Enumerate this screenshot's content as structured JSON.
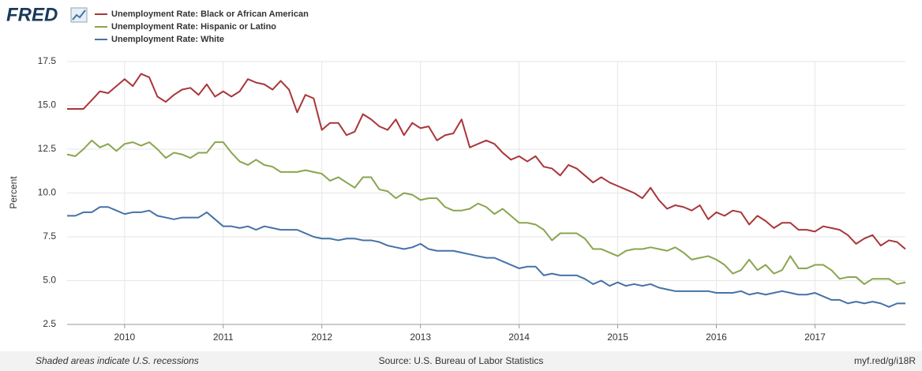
{
  "header": {
    "logo": "FRED"
  },
  "footer": {
    "note": "Shaded areas indicate U.S. recessions",
    "source": "Source: U.S. Bureau of Labor Statistics",
    "link": "myf.red/g/i18R"
  },
  "chart_data": {
    "type": "line",
    "ylabel": "Percent",
    "grid": true,
    "xlim": [
      2009.417,
      2017.917
    ],
    "xticks": [
      2010,
      2011,
      2012,
      2013,
      2014,
      2015,
      2016,
      2017
    ],
    "ylim": [
      2.5,
      17.5
    ],
    "yticks": [
      2.5,
      {
        "value": 5,
        "label": "5.0"
      },
      7.5,
      {
        "value": 10,
        "label": "10.0"
      },
      12.5,
      {
        "value": 15,
        "label": "15.0"
      },
      17.5
    ],
    "x": [
      2009.417,
      2009.5,
      2009.583,
      2009.667,
      2009.75,
      2009.833,
      2009.917,
      2010,
      2010.083,
      2010.167,
      2010.25,
      2010.333,
      2010.417,
      2010.5,
      2010.583,
      2010.667,
      2010.75,
      2010.833,
      2010.917,
      2011,
      2011.083,
      2011.167,
      2011.25,
      2011.333,
      2011.417,
      2011.5,
      2011.583,
      2011.667,
      2011.75,
      2011.833,
      2011.917,
      2012,
      2012.083,
      2012.167,
      2012.25,
      2012.333,
      2012.417,
      2012.5,
      2012.583,
      2012.667,
      2012.75,
      2012.833,
      2012.917,
      2013,
      2013.083,
      2013.167,
      2013.25,
      2013.333,
      2013.417,
      2013.5,
      2013.583,
      2013.667,
      2013.75,
      2013.833,
      2013.917,
      2014,
      2014.083,
      2014.167,
      2014.25,
      2014.333,
      2014.417,
      2014.5,
      2014.583,
      2014.667,
      2014.75,
      2014.833,
      2014.917,
      2015,
      2015.083,
      2015.167,
      2015.25,
      2015.333,
      2015.417,
      2015.5,
      2015.583,
      2015.667,
      2015.75,
      2015.833,
      2015.917,
      2016,
      2016.083,
      2016.167,
      2016.25,
      2016.333,
      2016.417,
      2016.5,
      2016.583,
      2016.667,
      2016.75,
      2016.833,
      2016.917,
      2017,
      2017.083,
      2017.167,
      2017.25,
      2017.333,
      2017.417,
      2017.5,
      2017.583,
      2017.667,
      2017.75,
      2017.833,
      2017.917
    ],
    "series": [
      {
        "name": "Unemployment Rate: Black or African American",
        "color": "#a9363a",
        "values": [
          14.8,
          14.8,
          14.8,
          15.3,
          15.8,
          15.7,
          16.1,
          16.5,
          16.1,
          16.8,
          16.6,
          15.5,
          15.2,
          15.6,
          15.9,
          16.0,
          15.6,
          16.2,
          15.5,
          15.8,
          15.5,
          15.8,
          16.5,
          16.3,
          16.2,
          15.9,
          16.4,
          15.9,
          14.6,
          15.6,
          15.4,
          13.6,
          14.0,
          14.0,
          13.3,
          13.5,
          14.5,
          14.2,
          13.8,
          13.6,
          14.2,
          13.3,
          14.0,
          13.7,
          13.8,
          13.0,
          13.3,
          13.4,
          14.2,
          12.6,
          12.8,
          13.0,
          12.8,
          12.3,
          11.9,
          12.1,
          11.8,
          12.1,
          11.5,
          11.4,
          11.0,
          11.6,
          11.4,
          11.0,
          10.6,
          10.9,
          10.6,
          10.4,
          10.2,
          10.0,
          9.7,
          10.3,
          9.6,
          9.1,
          9.3,
          9.2,
          9.0,
          9.3,
          8.5,
          8.9,
          8.7,
          9.0,
          8.9,
          8.2,
          8.7,
          8.4,
          8.0,
          8.3,
          8.3,
          7.9,
          7.9,
          7.8,
          8.1,
          8.0,
          7.9,
          7.6,
          7.1,
          7.4,
          7.6,
          7.0,
          7.3,
          7.2,
          6.8
        ]
      },
      {
        "name": "Unemployment Rate: Hispanic or Latino",
        "color": "#89a54e",
        "values": [
          12.2,
          12.1,
          12.5,
          13.0,
          12.6,
          12.8,
          12.4,
          12.8,
          12.9,
          12.7,
          12.9,
          12.5,
          12.0,
          12.3,
          12.2,
          12.0,
          12.3,
          12.3,
          12.9,
          12.9,
          12.3,
          11.8,
          11.6,
          11.9,
          11.6,
          11.5,
          11.2,
          11.2,
          11.2,
          11.3,
          11.2,
          11.1,
          10.7,
          10.9,
          10.6,
          10.3,
          10.9,
          10.9,
          10.2,
          10.1,
          9.7,
          10.0,
          9.9,
          9.6,
          9.7,
          9.7,
          9.2,
          9.0,
          9.0,
          9.1,
          9.4,
          9.2,
          8.8,
          9.1,
          8.7,
          8.3,
          8.3,
          8.2,
          7.9,
          7.3,
          7.7,
          7.7,
          7.7,
          7.4,
          6.8,
          6.8,
          6.6,
          6.4,
          6.7,
          6.8,
          6.8,
          6.9,
          6.8,
          6.7,
          6.9,
          6.6,
          6.2,
          6.3,
          6.4,
          6.2,
          5.9,
          5.4,
          5.6,
          6.2,
          5.6,
          5.9,
          5.4,
          5.6,
          6.4,
          5.7,
          5.7,
          5.9,
          5.9,
          5.6,
          5.1,
          5.2,
          5.2,
          4.8,
          5.1,
          5.1,
          5.1,
          4.8,
          4.9
        ]
      },
      {
        "name": "Unemployment Rate: White",
        "color": "#4572a7",
        "values": [
          8.7,
          8.7,
          8.9,
          8.9,
          9.2,
          9.2,
          9.0,
          8.8,
          8.9,
          8.9,
          9.0,
          8.7,
          8.6,
          8.5,
          8.6,
          8.6,
          8.6,
          8.9,
          8.5,
          8.1,
          8.1,
          8.0,
          8.1,
          7.9,
          8.1,
          8.0,
          7.9,
          7.9,
          7.9,
          7.7,
          7.5,
          7.4,
          7.4,
          7.3,
          7.4,
          7.4,
          7.3,
          7.3,
          7.2,
          7.0,
          6.9,
          6.8,
          6.9,
          7.1,
          6.8,
          6.7,
          6.7,
          6.7,
          6.6,
          6.5,
          6.4,
          6.3,
          6.3,
          6.1,
          5.9,
          5.7,
          5.8,
          5.8,
          5.3,
          5.4,
          5.3,
          5.3,
          5.3,
          5.1,
          4.8,
          5.0,
          4.7,
          4.9,
          4.7,
          4.8,
          4.7,
          4.8,
          4.6,
          4.5,
          4.4,
          4.4,
          4.4,
          4.4,
          4.4,
          4.3,
          4.3,
          4.3,
          4.4,
          4.2,
          4.3,
          4.2,
          4.3,
          4.4,
          4.3,
          4.2,
          4.2,
          4.3,
          4.1,
          3.9,
          3.9,
          3.7,
          3.8,
          3.7,
          3.8,
          3.7,
          3.5,
          3.7,
          3.7
        ]
      }
    ]
  }
}
